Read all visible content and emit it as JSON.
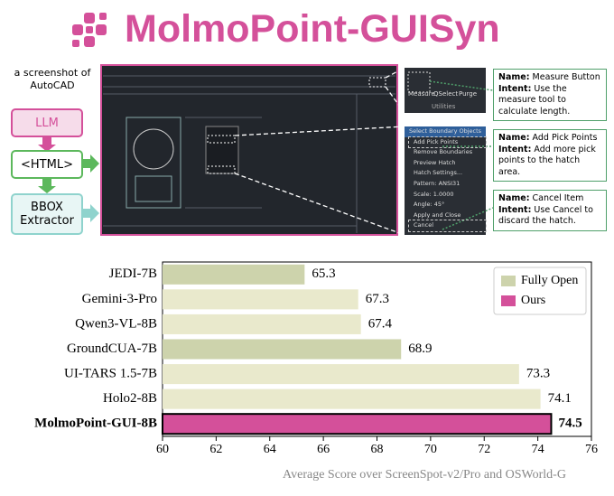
{
  "header": {
    "title": "MolmoPoint-GUISyn"
  },
  "pipeline": {
    "source": "a screenshot of AutoCAD",
    "steps": [
      "LLM",
      "<HTML>",
      "BBOX Extractor"
    ]
  },
  "crops": {
    "toolbar": {
      "items": [
        "Measure",
        "QSelect",
        "Purge"
      ],
      "panel": "Utilities"
    },
    "menu": {
      "title": "Select Boundary Objects",
      "items": [
        "Add Pick Points",
        "Remove Boundaries",
        "Preview Hatch",
        "Hatch Settings...",
        "Pattern: ANSI31",
        "Scale: 1.0000",
        "Angle: 45°",
        "Apply and Close",
        "Cancel"
      ]
    }
  },
  "annotations": [
    {
      "name_label": "Name:",
      "name": "Measure Button",
      "intent_label": "Intent:",
      "intent": "Use the measure tool to calculate length."
    },
    {
      "name_label": "Name:",
      "name": "Add Pick Points",
      "intent_label": "Intent:",
      "intent": "Add more pick points to the hatch area."
    },
    {
      "name_label": "Name:",
      "name": "Cancel Item",
      "intent_label": "Intent:",
      "intent": "Use Cancel to discard the hatch."
    }
  ],
  "chart_data": {
    "type": "hbar",
    "xlabel": "Average Score over ScreenSpot-v2/Pro and OSWorld-G",
    "categories": [
      "JEDI-7B",
      "Gemini-3-Pro",
      "Qwen3-VL-8B",
      "GroundCUA-7B",
      "UI-TARS 1.5-7B",
      "Holo2-8B",
      "MolmoPoint-GUI-8B"
    ],
    "values": [
      65.3,
      67.3,
      67.4,
      68.9,
      73.3,
      74.1,
      74.5
    ],
    "colors": [
      "#cdd3ac",
      "#e9e9cc",
      "#e9e9cc",
      "#cdd3ac",
      "#e9e9cc",
      "#e9e9cc",
      "#d4509a"
    ],
    "xlim": [
      60,
      76
    ],
    "xticks": [
      60,
      62,
      64,
      66,
      68,
      70,
      72,
      74,
      76
    ],
    "legend": [
      {
        "name": "Fully Open",
        "color": "#cdd3ac"
      },
      {
        "name": "Ours",
        "color": "#d4509a"
      }
    ],
    "legend_position": "upper right"
  }
}
